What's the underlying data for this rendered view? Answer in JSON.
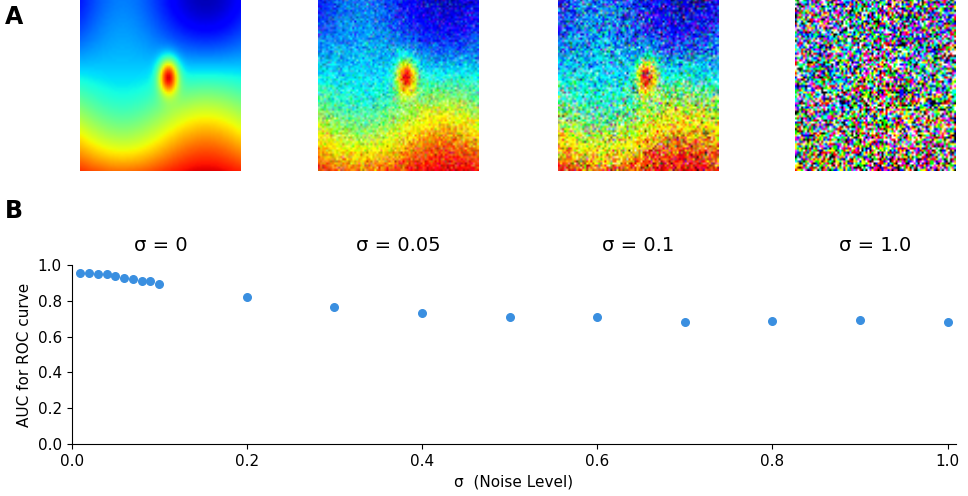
{
  "chart_data": {
    "type": "scatter",
    "x": [
      0.01,
      0.02,
      0.03,
      0.04,
      0.05,
      0.06,
      0.07,
      0.08,
      0.09,
      0.1,
      0.2,
      0.3,
      0.4,
      0.5,
      0.6,
      0.7,
      0.8,
      0.9,
      1.0
    ],
    "values": [
      0.96,
      0.955,
      0.95,
      0.95,
      0.94,
      0.93,
      0.925,
      0.91,
      0.91,
      0.895,
      0.825,
      0.765,
      0.735,
      0.71,
      0.71,
      0.685,
      0.69,
      0.695,
      0.685
    ],
    "color": "#3a8fe0",
    "marker": "o",
    "xlabel": "σ  (Noise Level)",
    "ylabel": "AUC for ROC curve",
    "xlim": [
      0,
      1.01
    ],
    "ylim": [
      0,
      1
    ],
    "xticks": [
      {
        "value": 0,
        "label": "0.0"
      },
      0.2,
      0.4,
      0.6,
      0.8,
      {
        "value": 1,
        "label": "1.0"
      }
    ],
    "yticks": [
      {
        "value": 0,
        "label": "0.0"
      },
      0.2,
      0.4,
      0.6,
      0.8,
      {
        "value": 1,
        "label": "1.0"
      }
    ],
    "grid": false
  },
  "panel_labels": [
    "A",
    "B"
  ],
  "images": [
    {
      "caption": "σ = 0",
      "sigma": 0
    },
    {
      "caption": "σ = 0.05",
      "sigma": 0.05
    },
    {
      "caption": "σ = 0.1",
      "sigma": 0.1
    },
    {
      "caption": "σ = 1.0",
      "sigma": 1.0
    }
  ]
}
